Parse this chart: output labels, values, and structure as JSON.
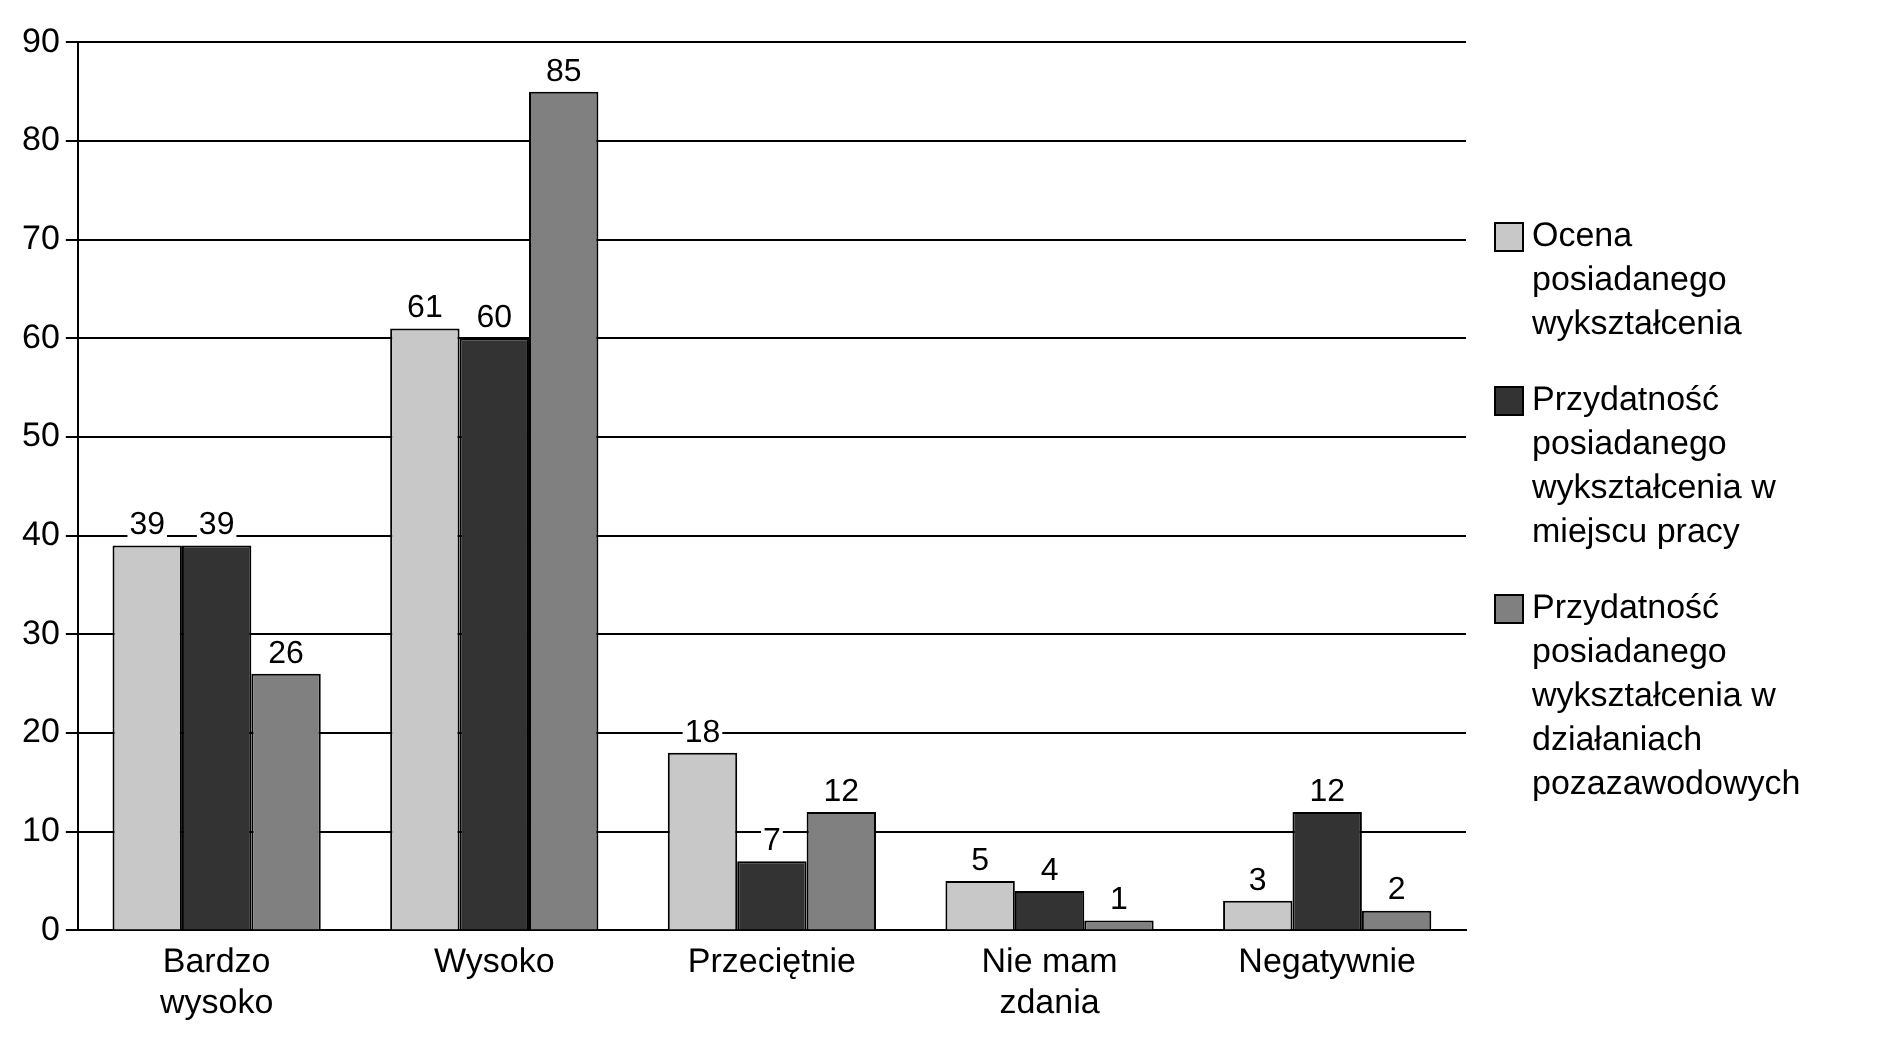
{
  "chart_data": {
    "type": "bar",
    "categories": [
      "Bardzo wysoko",
      "Wysoko",
      "Przeciętnie",
      "Nie mam zdania",
      "Negatywnie"
    ],
    "series": [
      {
        "name": "Ocena posiadanego wykształcenia",
        "color": "#c8c8c8",
        "values": [
          39,
          61,
          18,
          5,
          3
        ]
      },
      {
        "name": "Przydatność posiadanego wykształcenia w miejscu pracy",
        "color": "#333333",
        "values": [
          39,
          60,
          7,
          4,
          12
        ]
      },
      {
        "name": "Przydatność posiadanego wykształcenia w działaniach pozazawodowych",
        "color": "#808080",
        "values": [
          26,
          85,
          12,
          1,
          2
        ]
      }
    ],
    "ylim": [
      0,
      90
    ],
    "yticks": [
      0,
      10,
      20,
      30,
      40,
      50,
      60,
      70,
      80,
      90
    ],
    "grid": "y",
    "legend": "right",
    "data_labels": true
  }
}
